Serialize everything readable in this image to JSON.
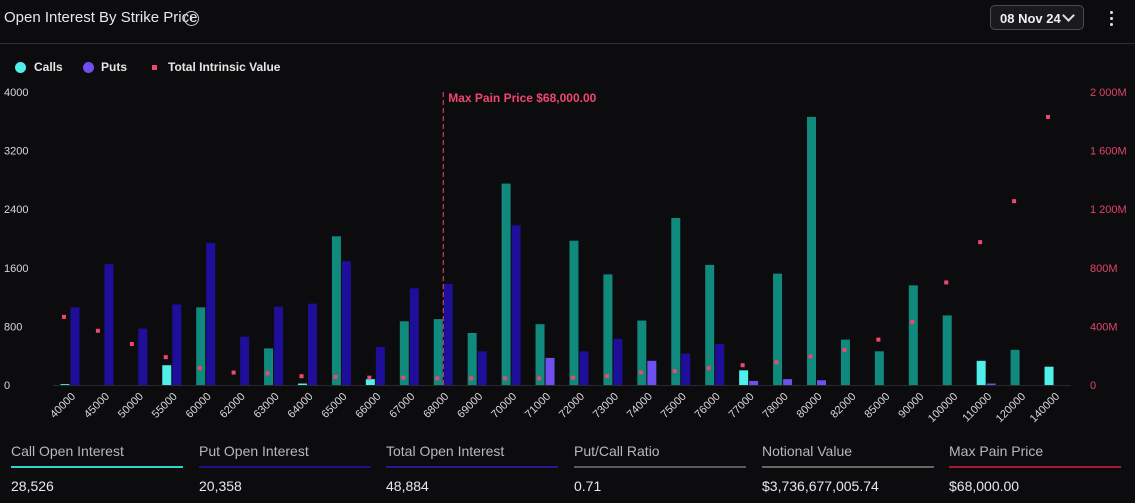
{
  "header": {
    "title": "Open Interest By Strike Price",
    "info_icon": "info-circle-icon",
    "date_value": "08 Nov 24",
    "date_icon": "chevron-down-icon",
    "menu_icon": "more-vertical-icon"
  },
  "legend": {
    "calls": "Calls",
    "puts": "Puts",
    "intrinsic": "Total Intrinsic Value"
  },
  "colors": {
    "calls_bar": "#0f8a7d",
    "calls_bar_highlight": "#4ff0ea",
    "puts_bar": "#1e0e99",
    "puts_bar_highlight": "#6f4ff0",
    "intrinsic": "#f0476f",
    "max_pain": "#f0476f",
    "legend_calls": "#4ff0ea",
    "legend_puts": "#6f4ff0"
  },
  "chart_data": {
    "type": "bar",
    "title": "Open Interest By Strike Price",
    "categories": [
      "40000",
      "45000",
      "50000",
      "55000",
      "60000",
      "62000",
      "63000",
      "64000",
      "65000",
      "66000",
      "67000",
      "68000",
      "69000",
      "70000",
      "71000",
      "72000",
      "73000",
      "74000",
      "75000",
      "76000",
      "77000",
      "78000",
      "80000",
      "82000",
      "85000",
      "90000",
      "100000",
      "110000",
      "120000",
      "140000"
    ],
    "series": [
      {
        "name": "Calls",
        "axis": "left",
        "values": [
          12,
          0,
          0,
          270,
          1060,
          0,
          500,
          20,
          2030,
          80,
          870,
          900,
          710,
          2750,
          830,
          1970,
          1510,
          880,
          2280,
          1640,
          200,
          1520,
          3660,
          620,
          460,
          1360,
          950,
          330,
          480,
          250
        ],
        "highlight": [
          true,
          false,
          false,
          true,
          false,
          false,
          false,
          true,
          false,
          true,
          false,
          false,
          false,
          false,
          false,
          false,
          false,
          false,
          false,
          false,
          true,
          false,
          false,
          false,
          false,
          false,
          false,
          true,
          false,
          true
        ]
      },
      {
        "name": "Puts",
        "axis": "left",
        "values": [
          1060,
          1650,
          770,
          1100,
          1940,
          660,
          1070,
          1110,
          1690,
          520,
          1320,
          1380,
          460,
          2180,
          370,
          460,
          630,
          330,
          430,
          560,
          55,
          80,
          65,
          0,
          0,
          0,
          0,
          20,
          0,
          0
        ],
        "highlight": [
          false,
          false,
          false,
          false,
          false,
          false,
          false,
          false,
          false,
          false,
          false,
          false,
          false,
          false,
          true,
          false,
          false,
          true,
          false,
          false,
          true,
          true,
          true,
          false,
          false,
          false,
          false,
          true,
          false,
          false
        ]
      },
      {
        "name": "Total Intrinsic Value",
        "axis": "right",
        "values": [
          465,
          370,
          280,
          190,
          115,
          85,
          80,
          60,
          55,
          50,
          50,
          45,
          45,
          45,
          45,
          50,
          60,
          85,
          95,
          115,
          135,
          155,
          195,
          240,
          310,
          430,
          700,
          975,
          1255,
          1830
        ]
      }
    ],
    "y_left": {
      "ylim": [
        0,
        4000
      ],
      "ticks": [
        "0",
        "800",
        "1600",
        "2400",
        "3200",
        "4000"
      ],
      "tick_values": [
        0,
        800,
        1600,
        2400,
        3200,
        4000
      ]
    },
    "y_right": {
      "ylim": [
        0,
        2000
      ],
      "ticks": [
        "0",
        "400M",
        "800M",
        "1 200M",
        "1 600M",
        "2 000M"
      ],
      "tick_values": [
        0,
        400,
        800,
        1200,
        1600,
        2000
      ]
    },
    "annotation": {
      "label": "Max Pain Price $68,000.00",
      "category": "68000"
    },
    "grid": false,
    "legend_position": "top-left"
  },
  "stats": [
    {
      "label": "Call Open Interest",
      "value": "28,526",
      "color": "#2fd6c6"
    },
    {
      "label": "Put Open Interest",
      "value": "20,358",
      "color": "#1c0f8c"
    },
    {
      "label": "Total Open Interest",
      "value": "48,884",
      "color": "#2a178f"
    },
    {
      "label": "Put/Call Ratio",
      "value": "0.71",
      "color": "#5a5a5e"
    },
    {
      "label": "Notional Value",
      "value": "$3,736,677,005.74",
      "color": "#6b6462"
    },
    {
      "label": "Max Pain Price",
      "value": "$68,000.00",
      "color": "#a41a3a"
    }
  ]
}
